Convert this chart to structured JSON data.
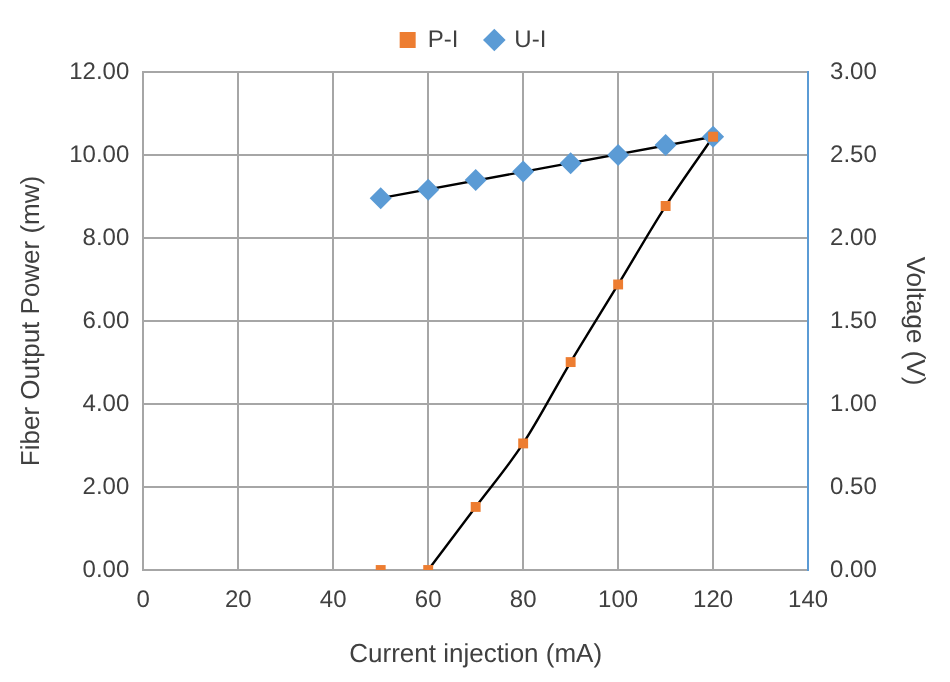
{
  "chart_data": {
    "type": "scatter",
    "xlabel": "Current injection (mA)",
    "ylabel": "Fiber Output Power (mw)",
    "y2label": "Voltage (V)",
    "xlim": [
      0,
      140
    ],
    "xticks": [
      0,
      20,
      40,
      60,
      80,
      100,
      120,
      140
    ],
    "ylim": [
      0,
      12
    ],
    "yticks": [
      {
        "value": 0,
        "label": "0.00"
      },
      {
        "value": 2,
        "label": "2.00"
      },
      {
        "value": 4,
        "label": "4.00"
      },
      {
        "value": 6,
        "label": "6.00"
      },
      {
        "value": 8,
        "label": "8.00"
      },
      {
        "value": 10,
        "label": "10.00"
      },
      {
        "value": 12,
        "label": "12.00"
      }
    ],
    "y2lim": [
      0,
      3
    ],
    "y2ticks": [
      {
        "value": 0,
        "label": "0.00"
      },
      {
        "value": 0.5,
        "label": "0.50"
      },
      {
        "value": 1,
        "label": "1.00"
      },
      {
        "value": 1.5,
        "label": "1.50"
      },
      {
        "value": 2,
        "label": "2.00"
      },
      {
        "value": 2.5,
        "label": "2.50"
      },
      {
        "value": 3,
        "label": "3.00"
      }
    ],
    "grid": true,
    "legend": "top",
    "series": [
      {
        "name": "P-I",
        "type": "scatter",
        "marker": "square",
        "color": "#ed7d31",
        "x": [
          50,
          60,
          70,
          80,
          90,
          100,
          110,
          120
        ],
        "values": [
          0,
          0,
          1.52,
          3.05,
          5.01,
          6.88,
          8.77,
          10.44
        ]
      },
      {
        "name": "U-I",
        "type": "scatter",
        "marker": "diamond",
        "axis": "y2",
        "color": "#5b9bd5",
        "x": [
          50,
          60,
          70,
          80,
          90,
          100,
          110,
          120
        ],
        "values": [
          2.24,
          2.29,
          2.35,
          2.4,
          2.45,
          2.5,
          2.56,
          2.61
        ]
      },
      {
        "type": "line",
        "marker": "none",
        "color": "#000000",
        "x": [
          60,
          70,
          80,
          90,
          100,
          110,
          120
        ],
        "values": [
          0,
          1.52,
          3.05,
          5.01,
          6.88,
          8.77,
          10.44
        ]
      },
      {
        "type": "line",
        "marker": "none",
        "axis": "y2",
        "color": "#000000",
        "x": [
          50,
          120
        ],
        "values": [
          2.24,
          2.61
        ]
      }
    ]
  }
}
